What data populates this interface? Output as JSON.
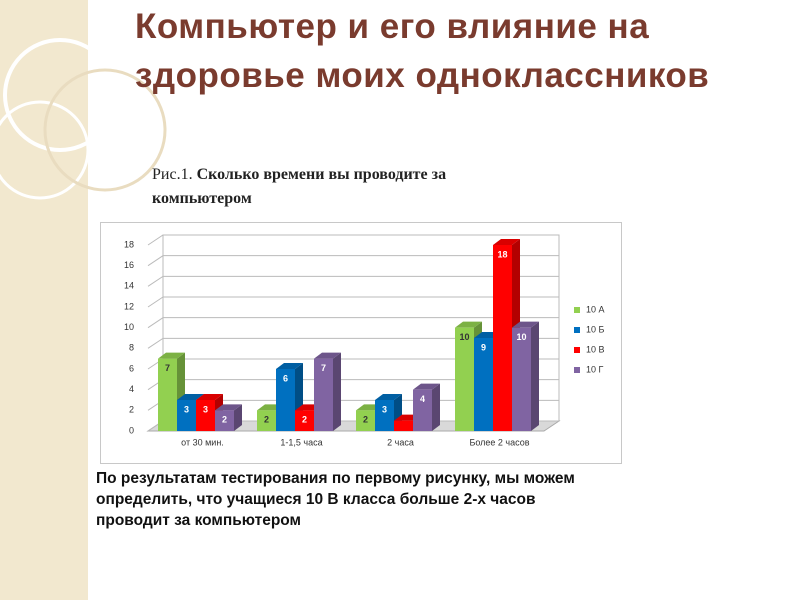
{
  "title": "Компьютер и его влияние на здоровье моих одноклассников",
  "caption_prefix": "Рис.1.",
  "caption": "Сколько времени вы проводите за компьютером",
  "body": "По результатам тестирования по первому рисунку, мы можем определить, что учащиеся 10 В  класса больше 2-х часов проводит за компьютером",
  "chart_data": {
    "type": "bar3d",
    "categories": [
      "от 30 мин.",
      "1-1,5 часа",
      "2 часа",
      "Более 2 часов"
    ],
    "series": [
      {
        "name": "10 А",
        "color": "#92d050",
        "values": [
          7,
          2,
          2,
          10
        ]
      },
      {
        "name": "10 Б",
        "color": "#0070c0",
        "values": [
          3,
          6,
          3,
          9
        ]
      },
      {
        "name": "10 В",
        "color": "#ff0000",
        "values": [
          3,
          2,
          1,
          18
        ],
        "value_labels": [
          "3",
          "2",
          null,
          "18"
        ]
      },
      {
        "name": "10 Г",
        "color": "#8064a2",
        "values": [
          2,
          7,
          4,
          10
        ]
      }
    ],
    "ylim": [
      0,
      18
    ],
    "yticks": [
      0,
      2,
      4,
      6,
      8,
      10,
      12,
      14,
      16,
      18
    ],
    "grid": true,
    "legend": "right"
  }
}
